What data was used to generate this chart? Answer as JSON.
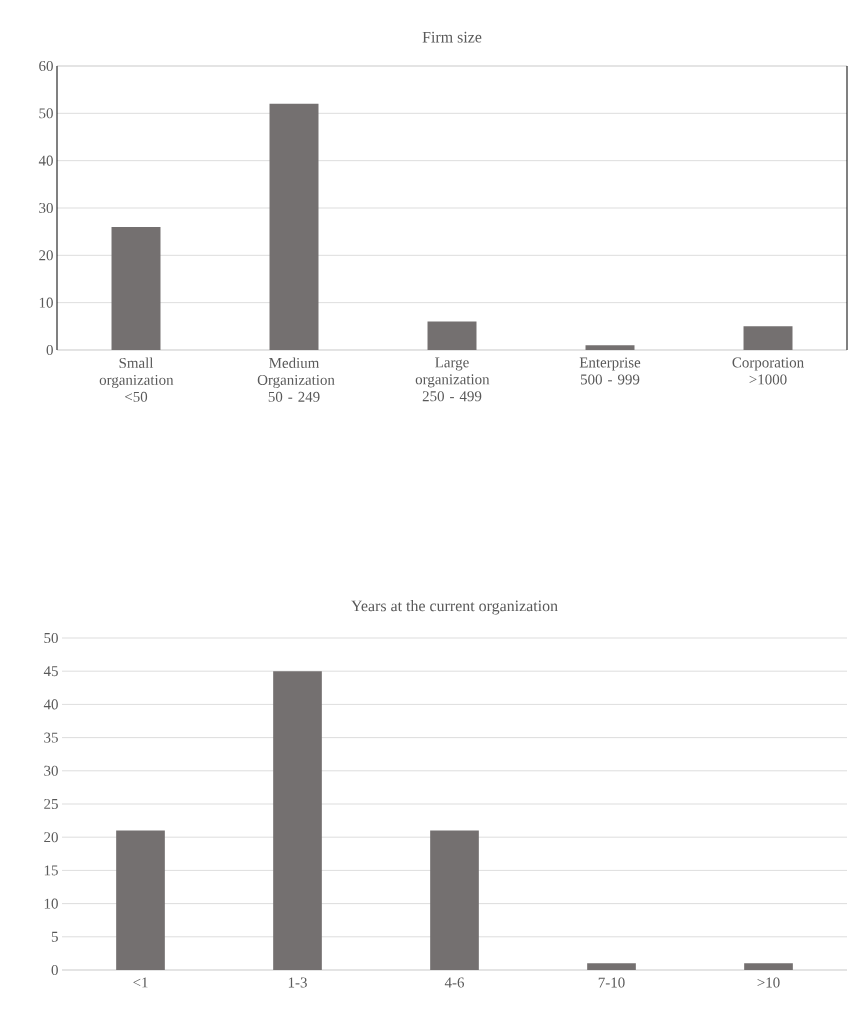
{
  "chart_data": [
    {
      "type": "bar",
      "title": "Firm size",
      "categories": [
        "Small organization <50",
        "Medium Organization 50 - 249",
        "Large organization 250 - 499",
        "Enterprise 500 - 999",
        "Corporation >1000"
      ],
      "values": [
        26,
        52,
        6,
        1,
        5
      ],
      "color": "#747070",
      "ylim": [
        0,
        60
      ],
      "yticks": [
        0,
        10,
        20,
        30,
        40,
        50,
        60
      ],
      "grid": "y"
    },
    {
      "type": "bar",
      "title": "Years at the current organization",
      "categories": [
        "<1",
        "1-3",
        "4-6",
        "7-10",
        ">10"
      ],
      "values": [
        21,
        45,
        21,
        1,
        1
      ],
      "color": "#747070",
      "ylim": [
        0,
        50
      ],
      "yticks": [
        0,
        5,
        10,
        15,
        20,
        25,
        30,
        35,
        40,
        45,
        50
      ],
      "grid": "y"
    }
  ]
}
